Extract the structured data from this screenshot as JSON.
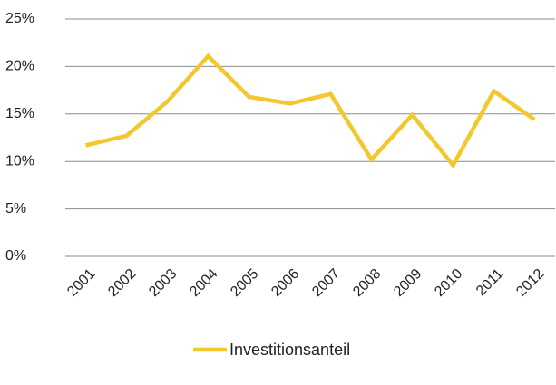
{
  "chart_data": {
    "type": "line",
    "categories": [
      "2001",
      "2002",
      "2003",
      "2004",
      "2005",
      "2006",
      "2007",
      "2008",
      "2009",
      "2010",
      "2011",
      "2012"
    ],
    "series": [
      {
        "name": "Investitionsanteil",
        "color": "#f2c82e",
        "values": [
          11.7,
          12.7,
          16.3,
          21.1,
          16.8,
          16.1,
          17.1,
          10.2,
          14.9,
          9.6,
          17.4,
          14.4
        ]
      }
    ],
    "ylim": [
      0,
      25
    ],
    "yticks": [
      {
        "value": 0,
        "label": "0%"
      },
      {
        "value": 5,
        "label": "5%"
      },
      {
        "value": 10,
        "label": "10%"
      },
      {
        "value": 15,
        "label": "15%"
      },
      {
        "value": 20,
        "label": "20%"
      },
      {
        "value": 25,
        "label": "25%"
      }
    ],
    "grid": true,
    "legend": "bottom"
  }
}
